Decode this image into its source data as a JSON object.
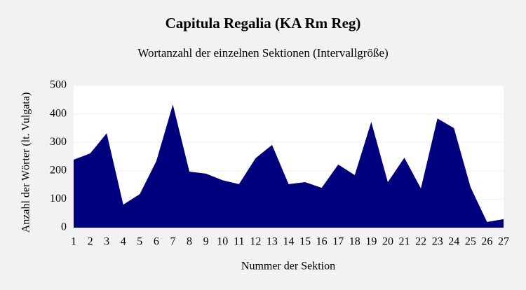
{
  "chart_data": {
    "type": "area",
    "title": "Capitula Regalia (KA Rm Reg)",
    "subtitle": "Wortanzahl der einzelnen Sektionen (Intervallgröße)",
    "x_label": "Nummer der Sektion",
    "y_label": "Anzahl der Wörter (lt. Vulgata)",
    "categories": [
      "1",
      "2",
      "3",
      "4",
      "5",
      "6",
      "7",
      "8",
      "9",
      "10",
      "11",
      "12",
      "13",
      "14",
      "15",
      "16",
      "17",
      "18",
      "19",
      "20",
      "21",
      "22",
      "23",
      "24",
      "25",
      "26",
      "27"
    ],
    "values": [
      239,
      261,
      332,
      81,
      118,
      234,
      433,
      197,
      190,
      167,
      153,
      244,
      291,
      153,
      160,
      140,
      222,
      185,
      372,
      160,
      246,
      138,
      384,
      350,
      143,
      20,
      30
    ],
    "color": "#00007f",
    "ylim": [
      0,
      500
    ],
    "yticks": [
      0,
      100,
      200,
      300,
      400,
      500
    ],
    "grid": true
  }
}
